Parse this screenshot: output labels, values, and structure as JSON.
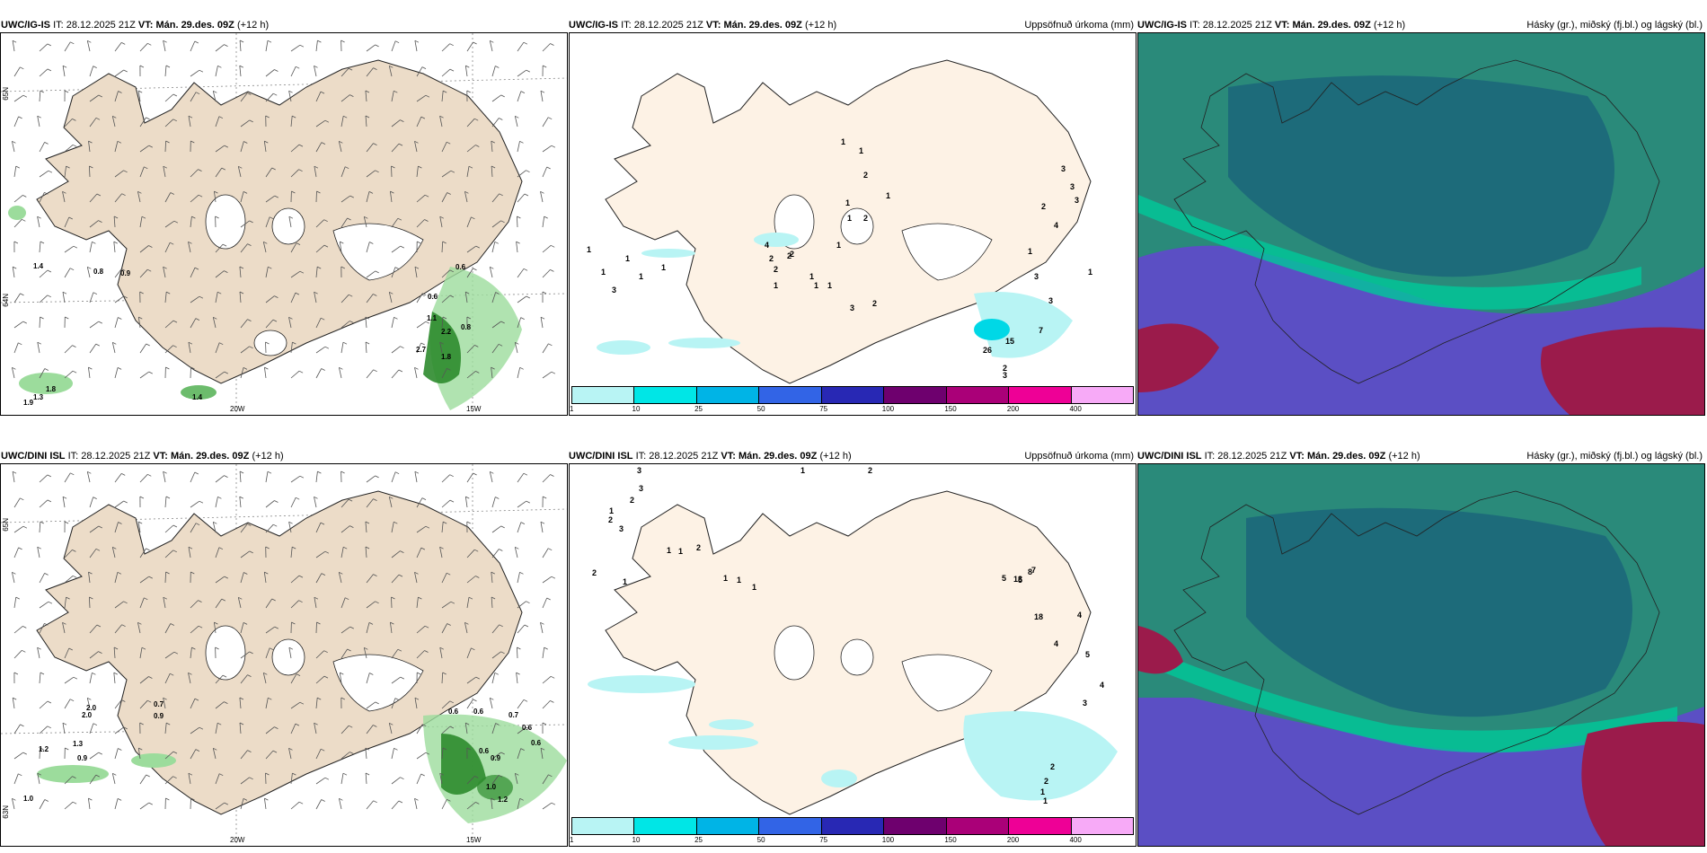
{
  "rows": [
    {
      "model": "UWC/IG-IS",
      "it_label": "IT:",
      "it_value": "28.12.2025 21Z",
      "vt_label": "VT:",
      "vt_value": "Mán. 29.des. 09Z",
      "lead": "(+12 h)",
      "precip_title": "Uppsöfnuð úrkoma (mm)",
      "cloud_title": "Hásky (gr.), miðský (fj.bl.) og lágský (bl.)",
      "wind_labels": [
        "1.4",
        "0.8",
        "0.9",
        "0.6",
        "0.6",
        "1.1",
        "2.2",
        "0.8",
        "2.7",
        "1.8",
        "1.8",
        "1.3",
        "1.9",
        "1.4"
      ],
      "precip_labels": [
        "1",
        "1",
        "2",
        "1",
        "1",
        "2",
        "1",
        "1",
        "2",
        "4",
        "2",
        "2",
        "2",
        "1",
        "1",
        "1",
        "1",
        "1",
        "1",
        "1",
        "1",
        "1",
        "3",
        "3",
        "3",
        "3",
        "4",
        "2",
        "1",
        "1",
        "3",
        "26",
        "15",
        "7",
        "3",
        "2",
        "3",
        "2",
        "3"
      ]
    },
    {
      "model": "UWC/DINI ISL",
      "it_label": "IT:",
      "it_value": "28.12.2025 21Z",
      "vt_label": "VT:",
      "vt_value": "Mán. 29.des. 09Z",
      "lead": "(+12 h)",
      "precip_title": "Uppsöfnuð úrkoma (mm)",
      "cloud_title": "Hásky (gr.), miðský (fj.bl.) og lágský (bl.)",
      "wind_labels": [
        "2.0",
        "0.7",
        "0.9",
        "1.2",
        "1.3",
        "0.9",
        "1.0",
        "0.6",
        "0.6",
        "0.7",
        "0.6",
        "0.6",
        "0.6",
        "0.9",
        "2.0",
        "1.0",
        "1.2"
      ],
      "precip_labels": [
        "2",
        "1",
        "3",
        "3",
        "2",
        "1",
        "2",
        "3",
        "1",
        "2",
        "1",
        "1",
        "2",
        "1",
        "1",
        "1",
        "5",
        "7",
        "5",
        "13",
        "8",
        "18",
        "4",
        "4",
        "5",
        "4",
        "3",
        "2",
        "2",
        "1",
        "1"
      ]
    }
  ],
  "colorbar": {
    "labels": [
      "1",
      "10",
      "25",
      "50",
      "75",
      "100",
      "150",
      "200",
      "400"
    ],
    "colors": [
      "#b8f4f4",
      "#00e6e6",
      "#00b4e6",
      "#3264e6",
      "#2828b4",
      "#6e006e",
      "#aa0078",
      "#ee0096",
      "#f7aaf7"
    ]
  },
  "axes": {
    "lon_labels": [
      "20W",
      "15W"
    ],
    "lat_labels": [
      "65N",
      "64N",
      "63N"
    ]
  },
  "colors": {
    "land": "#ecdcc8",
    "land_precip": "#fdf2e5",
    "precip_light": "#b8f4f4",
    "wind_green": "#88d088",
    "cloud_high": "#2a9a7a",
    "cloud_mid": "#6a5acd",
    "cloud_low": "#9b1b4b"
  }
}
